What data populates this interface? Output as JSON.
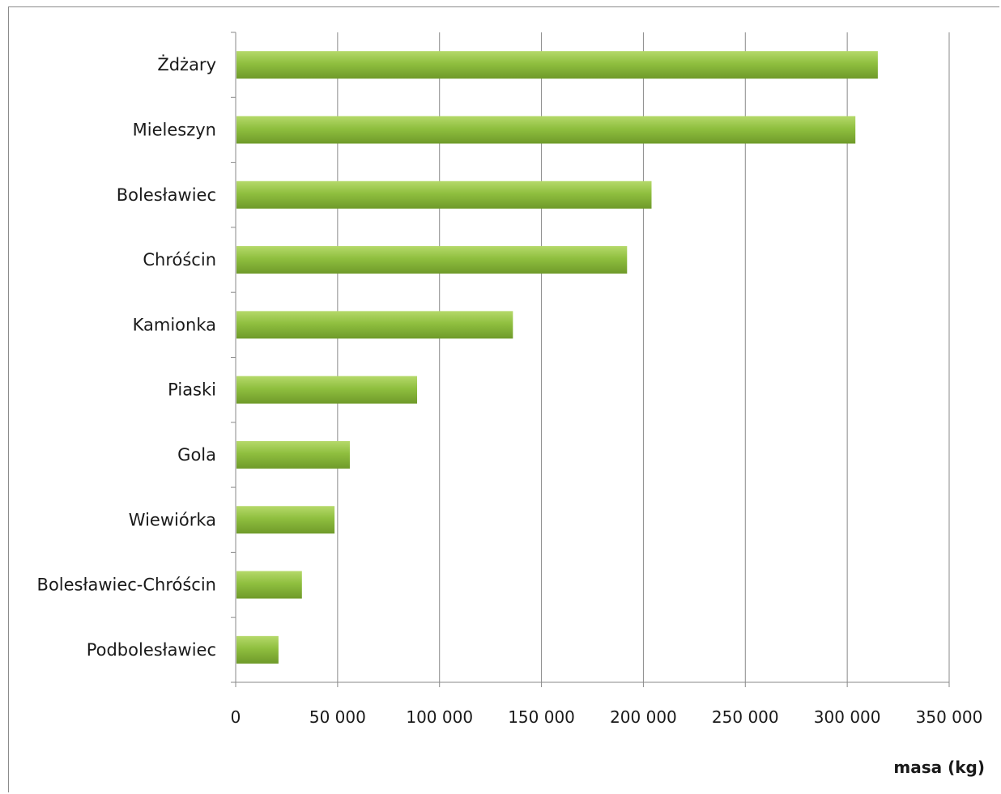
{
  "chart_data": {
    "type": "bar",
    "orientation": "horizontal",
    "categories": [
      "Żdżary",
      "Mieleszyn",
      "Bolesławiec",
      "Chróścin",
      "Kamionka",
      "Piaski",
      "Gola",
      "Wiewiórka",
      "Bolesławiec-Chróścin",
      "Podbolesławiec"
    ],
    "values": [
      315000,
      304000,
      204000,
      192000,
      136000,
      89000,
      56000,
      48500,
      32500,
      21000
    ],
    "xlabel": "masa (kg)",
    "ylabel": "",
    "xlim": [
      0,
      350000
    ],
    "x_ticks": [
      0,
      50000,
      100000,
      150000,
      200000,
      250000,
      300000,
      350000
    ],
    "x_tick_labels": [
      "0",
      "50 000",
      "100 000",
      "150 000",
      "200 000",
      "250 000",
      "300 000",
      "350 000"
    ],
    "grid": "vertical",
    "bar_color": "#8fbf3f",
    "bar_color_light": "#b5d96a",
    "bar_color_dark": "#6f9a2a",
    "grid_color": "#8a8a8a"
  }
}
